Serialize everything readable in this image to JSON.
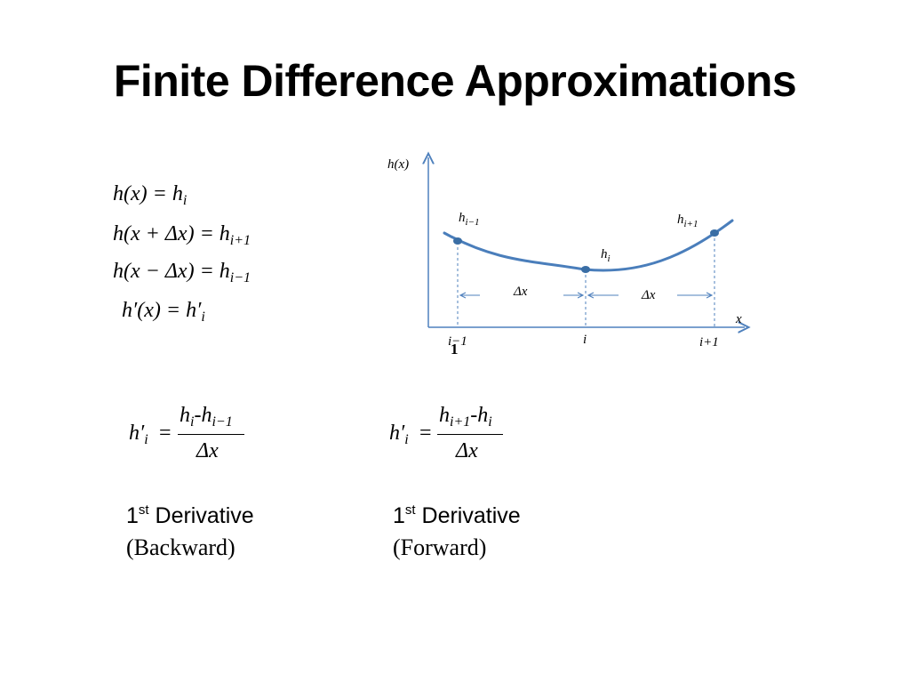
{
  "slide": {
    "title": "Finite Difference Approximations"
  },
  "definitions": [
    {
      "lhs": "h(x) = h",
      "sub": "i"
    },
    {
      "lhs": "h(x + Δx) = h",
      "sub": "i+1"
    },
    {
      "lhs": "h(x − Δx) = h",
      "sub": "i−1"
    },
    {
      "lhs": "h′(x)  = h′",
      "sub": "i"
    }
  ],
  "graph": {
    "y_axis_label": "h(x)",
    "x_axis_label": "x",
    "points": [
      {
        "label": "h",
        "sub": "i−1",
        "tick": "i−1"
      },
      {
        "label": "h",
        "sub": "i",
        "tick": "i"
      },
      {
        "label": "h",
        "sub": "i+1",
        "tick": "i+1"
      }
    ],
    "spacing_label": "Δx",
    "curve_color": "#4a7ebb",
    "axis_color": "#4f81bd"
  },
  "backward": {
    "lhs": "h′",
    "lhs_sub": "i",
    "equals": "=",
    "numerator": "h",
    "num_sub1": "i",
    "num_mid": "-h",
    "num_sub2": "i−1",
    "denominator": "Δx",
    "caption_num": "1",
    "caption_sup": "st",
    "caption_word": " Derivative",
    "caption_kind": "(Backward)"
  },
  "forward": {
    "lhs": "h′",
    "lhs_sub": "i",
    "equals": "=",
    "numerator": "h",
    "num_sub1": "i+1",
    "num_mid": "-h",
    "num_sub2": "i",
    "denominator": "Δx",
    "caption_num": "1",
    "caption_sup": "st",
    "caption_word": " Derivative",
    "caption_kind": "(Forward)"
  }
}
